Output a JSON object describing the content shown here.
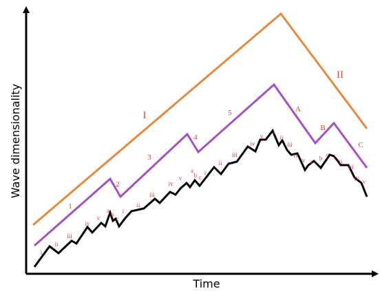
{
  "axes": {
    "ylabel": "Wave dimensionality",
    "xlabel": "Time"
  },
  "colors": {
    "axis": "#000000",
    "primary_wave": "#e8883a",
    "intermediate_wave": "#a64ec4",
    "minor_wave": "#000000",
    "labels": "#e8383d"
  },
  "labels": {
    "primary": {
      "I": "I",
      "II": "II"
    },
    "intermediate": {
      "w1": "1",
      "w2": "2",
      "w3": "3",
      "w4": "4",
      "w5": "5",
      "A": "A",
      "B": "B",
      "C": "C"
    },
    "minor": {
      "m1": "i",
      "m2": "ii",
      "m3": "iii",
      "m4": "iv",
      "m5": "v",
      "m6": "a",
      "m7": "b",
      "m8": "c",
      "m9": "i",
      "m10": "ii",
      "m11": "iii",
      "m12": "iv",
      "m13": "v",
      "m14": "a",
      "m15": "b",
      "m16": "c",
      "m17": "i",
      "m18": "ii",
      "m19": "iii",
      "m20": "iv",
      "m21": "v",
      "m22": "i",
      "m23": "ii",
      "m24": "iii",
      "m25": "iv",
      "m26": "v",
      "m27": "a",
      "m28": "b",
      "m29": "c",
      "m30": "i",
      "m31": "ii",
      "m32": "iii",
      "m33": "iv",
      "m34": "v"
    }
  }
}
